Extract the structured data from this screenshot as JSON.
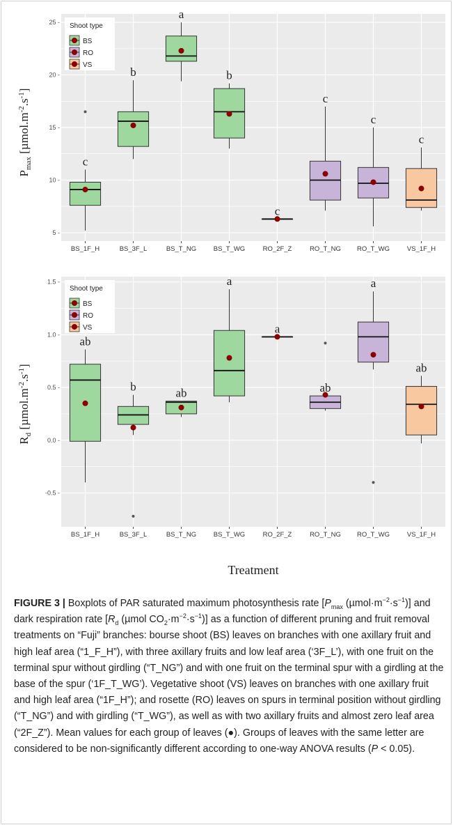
{
  "chart_data": [
    {
      "type": "boxplot",
      "ylabel": "Pmax [µmol.m-2.s-1]",
      "ylabel_parts": {
        "main": "P",
        "sub": "max",
        "unit_pre": " [µmol.m",
        "sup1": "-2",
        "unit_mid": ".s",
        "sup2": "-1",
        "unit_post": "]"
      },
      "xlabel": "",
      "ylim": [
        4.2,
        25.8
      ],
      "yticks": [
        5,
        10,
        15,
        20,
        25
      ],
      "ytick_labels": [
        "5 -",
        "10 -",
        "15 -",
        "20 -",
        "25 -"
      ],
      "grid": true,
      "legend": {
        "title": "Shoot type",
        "position": "top-left",
        "entries": [
          "BS",
          "RO",
          "VS"
        ]
      },
      "categories": [
        "BS_1F_H",
        "BS_3F_L",
        "BS_T_NG",
        "BS_T_WG",
        "RO_2F_Z",
        "RO_T_NG",
        "RO_T_WG",
        "VS_1F_H"
      ],
      "shoot_type": [
        "BS",
        "BS",
        "BS",
        "BS",
        "RO",
        "RO",
        "RO",
        "VS"
      ],
      "boxes": [
        {
          "min": 5.2,
          "q1": 7.6,
          "median": 9.1,
          "q3": 9.8,
          "max": 11.0,
          "mean": 9.1,
          "outliers": [
            16.5
          ],
          "letter": "c"
        },
        {
          "min": 12.0,
          "q1": 13.2,
          "median": 15.6,
          "q3": 16.5,
          "max": 19.5,
          "mean": 15.2,
          "outliers": [],
          "letter": "b"
        },
        {
          "min": 19.4,
          "q1": 21.3,
          "median": 21.8,
          "q3": 23.7,
          "max": 25.0,
          "mean": 22.3,
          "outliers": [],
          "letter": "a"
        },
        {
          "min": 13.0,
          "q1": 14.0,
          "median": 16.5,
          "q3": 18.7,
          "max": 19.2,
          "mean": 16.3,
          "outliers": [],
          "letter": "b"
        },
        {
          "min": 6.3,
          "q1": 6.3,
          "median": 6.3,
          "q3": 6.3,
          "max": 6.3,
          "mean": 6.3,
          "outliers": [],
          "letter": "c"
        },
        {
          "min": 7.1,
          "q1": 8.1,
          "median": 10.0,
          "q3": 11.8,
          "max": 17.0,
          "mean": 10.6,
          "outliers": [],
          "letter": "c"
        },
        {
          "min": 5.6,
          "q1": 8.3,
          "median": 9.7,
          "q3": 11.2,
          "max": 15.0,
          "mean": 9.8,
          "outliers": [],
          "letter": "c"
        },
        {
          "min": 7.1,
          "q1": 7.4,
          "median": 8.1,
          "q3": 11.1,
          "max": 13.1,
          "mean": 9.2,
          "outliers": [],
          "letter": "c"
        }
      ]
    },
    {
      "type": "boxplot",
      "ylabel": "Rd [µmol.m-2.s-1]",
      "ylabel_parts": {
        "main": "R",
        "sub": "d",
        "unit_pre": " [µmol.m",
        "sup1": "-2",
        "unit_mid": ".s",
        "sup2": "-1",
        "unit_post": "]"
      },
      "xlabel": "Treatment",
      "ylim": [
        -0.82,
        1.55
      ],
      "yticks": [
        -0.5,
        0.0,
        0.5,
        1.0,
        1.5
      ],
      "ytick_labels": [
        "-0.5 -",
        "0.0 -",
        "0.5 -",
        "1.0 -",
        "1.5 -"
      ],
      "grid": true,
      "legend": {
        "title": "Shoot type",
        "position": "top-left",
        "entries": [
          "BS",
          "RO",
          "VS"
        ]
      },
      "categories": [
        "BS_1F_H",
        "BS_3F_L",
        "BS_T_NG",
        "BS_T_WG",
        "RO_2F_Z",
        "RO_T_NG",
        "RO_T_WG",
        "VS_1F_H"
      ],
      "shoot_type": [
        "BS",
        "BS",
        "BS",
        "BS",
        "RO",
        "RO",
        "RO",
        "VS"
      ],
      "boxes": [
        {
          "min": -0.4,
          "q1": -0.01,
          "median": 0.57,
          "q3": 0.72,
          "max": 0.86,
          "mean": 0.35,
          "outliers": [],
          "letter": "ab"
        },
        {
          "min": 0.05,
          "q1": 0.15,
          "median": 0.24,
          "q3": 0.32,
          "max": 0.43,
          "mean": 0.12,
          "outliers": [
            -0.72
          ],
          "letter": "b"
        },
        {
          "min": 0.22,
          "q1": 0.25,
          "median": 0.36,
          "q3": 0.37,
          "max": 0.37,
          "mean": 0.31,
          "outliers": [],
          "letter": "ab"
        },
        {
          "min": 0.36,
          "q1": 0.42,
          "median": 0.66,
          "q3": 1.04,
          "max": 1.43,
          "mean": 0.78,
          "outliers": [],
          "letter": "a"
        },
        {
          "min": 0.98,
          "q1": 0.98,
          "median": 0.98,
          "q3": 0.98,
          "max": 0.98,
          "mean": 0.98,
          "outliers": [],
          "letter": "a"
        },
        {
          "min": 0.28,
          "q1": 0.3,
          "median": 0.36,
          "q3": 0.42,
          "max": 0.42,
          "mean": 0.43,
          "outliers": [
            0.92
          ],
          "letter": "ab"
        },
        {
          "min": 0.67,
          "q1": 0.74,
          "median": 0.98,
          "q3": 1.12,
          "max": 1.41,
          "mean": 0.81,
          "outliers": [
            -0.4
          ],
          "letter": "a"
        },
        {
          "min": -0.03,
          "q1": 0.05,
          "median": 0.34,
          "q3": 0.51,
          "max": 0.61,
          "mean": 0.32,
          "outliers": [],
          "letter": "ab"
        }
      ]
    }
  ],
  "colors": {
    "BS": "#9fd89f",
    "RO": "#c8b4d8",
    "VS": "#f8c9a0",
    "mean_dot": "#8b0000",
    "panel_bg": "#ebebeb",
    "grid": "#ffffff",
    "whisker": "#333333",
    "outlier": "#555555"
  },
  "caption": {
    "label": "FIGURE 3 |",
    "t1": " Boxplots of PAR saturated maximum photosynthesis rate [",
    "pmax_main": "P",
    "pmax_sub": "max",
    "t2": " (µmol·m",
    "sup_a": "−2",
    "t3": "·s",
    "sup_b": "−1",
    "t4": ")] and dark respiration rate [",
    "rd_main": "R",
    "rd_sub": "d",
    "t5": " (µmol CO",
    "co2_sub": "2",
    "t6": "·m",
    "sup_c": "−2",
    "t7": "·s",
    "sup_d": "−1",
    "t8": ")] as a function of different pruning and fruit removal treatments on “Fuji” branches: bourse shoot (BS) leaves on branches with one axillary fruit and high leaf area (“1_F_H”), with three axillary fruits and low leaf area (‘3F_L’), with one fruit on the terminal spur without girdling (“T_NG”) and with one fruit on the terminal spur with a girdling at the base of the spur (‘1F_T_WG’). Vegetative shoot (VS) leaves on branches with one axillary fruit and high leaf area (“1F_H”); and rosette (RO) leaves on spurs in terminal position without girdling (“T_NG”) and with girdling (“T_WG”), as well as with two axillary fruits and almost zero leaf area (“2F_Z”). Mean values for each group of leaves (●). Groups of leaves with the same letter are considered to be non-significantly different according to one-way ANOVA results (",
    "p_letter": "P",
    "t9": " < 0.05)."
  }
}
